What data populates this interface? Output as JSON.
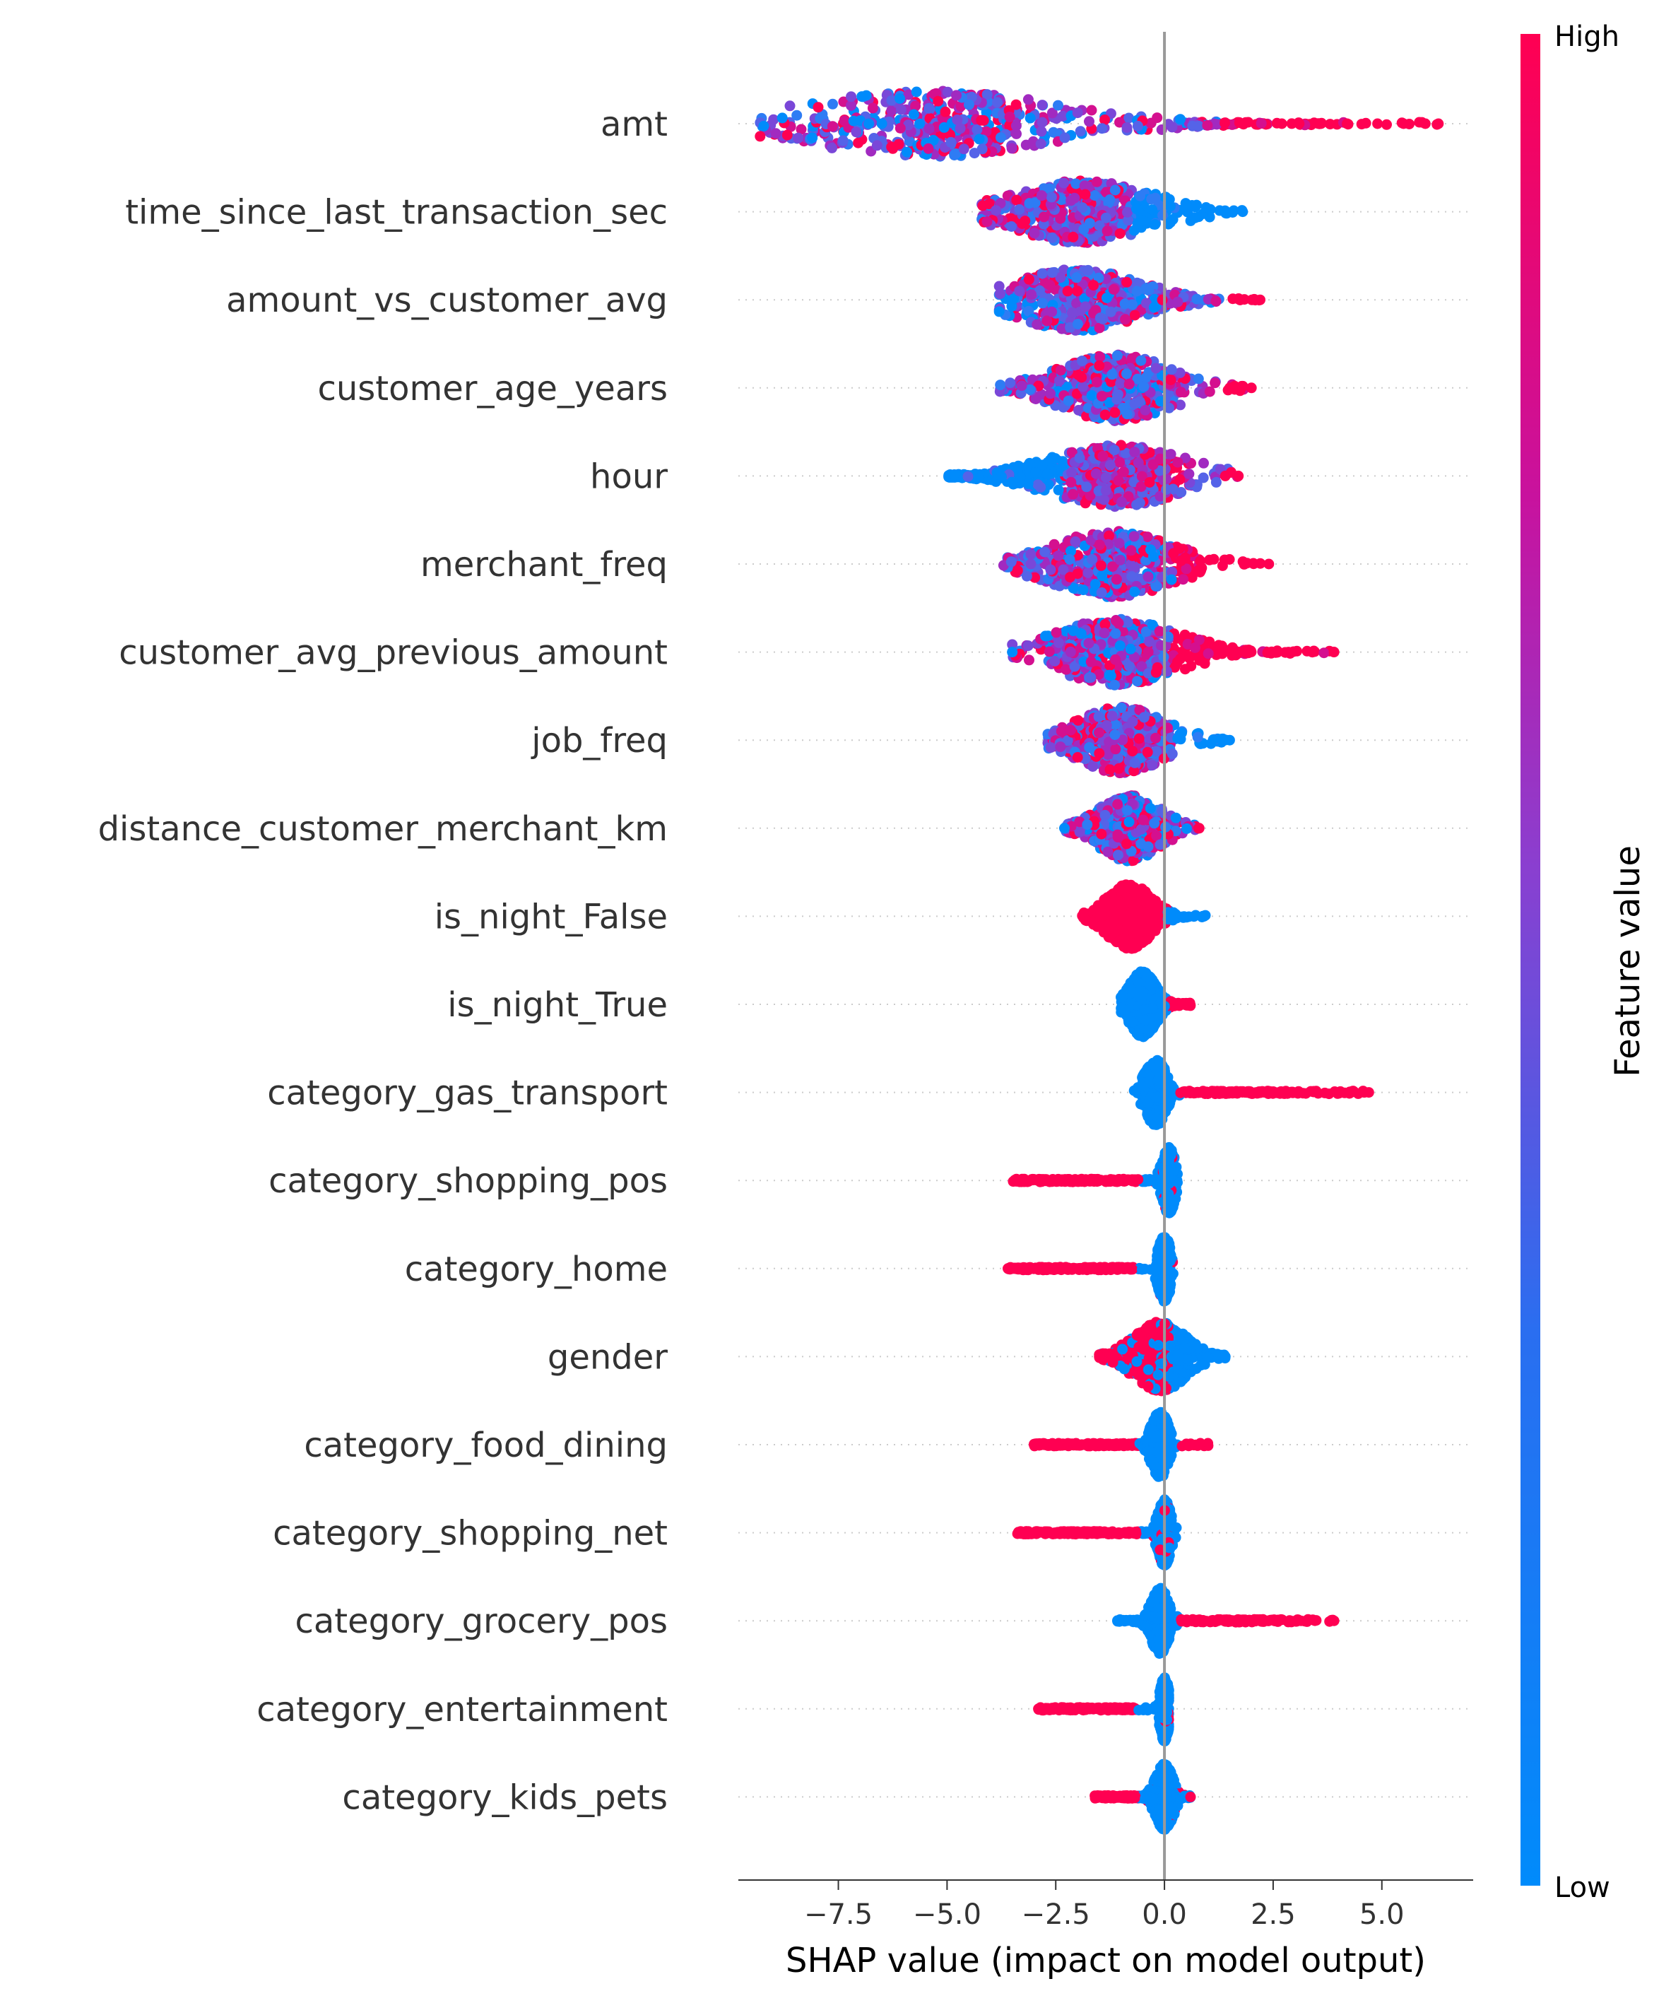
{
  "chart_data": {
    "type": "scatter",
    "subtype": "shap-beeswarm",
    "xlabel": "SHAP value (impact on model output)",
    "xlim": [
      -9.8,
      7.1
    ],
    "xticks": [
      -7.5,
      -5.0,
      -2.5,
      0.0,
      2.5,
      5.0
    ],
    "xtick_labels": [
      "−7.5",
      "−5.0",
      "−2.5",
      "0.0",
      "2.5",
      "5.0"
    ],
    "colorbar": {
      "label": "Feature value",
      "high_label": "High",
      "low_label": "Low",
      "high_color": "#ff0052",
      "low_color": "#008bfb"
    },
    "features": [
      {
        "name": "amt",
        "min": -9.3,
        "max": 6.3,
        "peak": -5.4,
        "width": 0.9,
        "spread": 2.9,
        "color_mode": "mixed",
        "pos_high": true,
        "outliers": [
          -6.5,
          -6.8,
          2.7,
          3.1,
          3.6,
          4.2,
          4.9,
          5.5,
          6.0,
          6.3
        ]
      },
      {
        "name": "time_since_last_transaction_sec",
        "min": -4.2,
        "max": 1.8,
        "peak": -1.9,
        "width": 0.85,
        "spread": 1.6,
        "color_mode": "mixed_low_right",
        "pos_high": false,
        "outliers": [
          1.8
        ]
      },
      {
        "name": "amount_vs_customer_avg",
        "min": -3.8,
        "max": 2.2,
        "peak": -2.0,
        "width": 0.85,
        "spread": 1.4,
        "color_mode": "mixed",
        "pos_high": true,
        "outliers": [
          2.2
        ]
      },
      {
        "name": "customer_age_years",
        "min": -3.8,
        "max": 2.0,
        "peak": -1.1,
        "width": 0.9,
        "spread": 1.3,
        "color_mode": "mixed",
        "pos_high": true,
        "outliers": [
          1.5,
          2.0
        ]
      },
      {
        "name": "hour",
        "min": -5.0,
        "max": 1.7,
        "peak": -1.1,
        "width": 0.85,
        "spread": 1.5,
        "color_mode": "mixed_low_left",
        "pos_high": true,
        "outliers": [
          1.7,
          1.4
        ]
      },
      {
        "name": "merchant_freq",
        "min": -3.7,
        "max": 2.4,
        "peak": -1.2,
        "width": 0.9,
        "spread": 1.4,
        "color_mode": "mixed_high_right",
        "pos_high": true,
        "outliers": [
          2.4
        ]
      },
      {
        "name": "customer_avg_previous_amount",
        "min": -3.5,
        "max": 3.9,
        "peak": -1.1,
        "width": 0.9,
        "spread": 1.4,
        "color_mode": "mixed_high_right",
        "pos_high": true,
        "outliers": [
          3.9,
          -3.5
        ]
      },
      {
        "name": "job_freq",
        "min": -2.7,
        "max": 1.5,
        "peak": -1.0,
        "width": 0.9,
        "spread": 1.0,
        "color_mode": "mixed_low_right",
        "pos_high": false,
        "outliers": [
          1.5
        ]
      },
      {
        "name": "distance_customer_merchant_km",
        "min": -2.3,
        "max": 0.8,
        "peak": -0.8,
        "width": 0.9,
        "spread": 0.7,
        "color_mode": "mixed",
        "pos_high": true,
        "outliers": [
          -2.3,
          0.8
        ]
      },
      {
        "name": "is_night_False",
        "min": -1.9,
        "max": 1.0,
        "peak": -0.8,
        "width": 0.9,
        "spread": 0.5,
        "color_mode": "split_high_left",
        "pos_high": false,
        "outliers": []
      },
      {
        "name": "is_night_True",
        "min": -1.0,
        "max": 0.6,
        "peak": -0.5,
        "width": 0.9,
        "spread": 0.3,
        "color_mode": "split_high_right",
        "pos_high": true,
        "outliers": []
      },
      {
        "name": "category_gas_transport",
        "min": -0.7,
        "max": 4.7,
        "peak": -0.2,
        "width": 0.9,
        "spread": 0.25,
        "color_mode": "tail_high_right",
        "pos_high": true,
        "outliers": [
          4.6,
          4.7
        ]
      },
      {
        "name": "category_shopping_pos",
        "min": -3.5,
        "max": 0.3,
        "peak": 0.1,
        "width": 0.9,
        "spread": 0.15,
        "color_mode": "tail_high_left",
        "pos_high": false,
        "outliers": [
          -0.7,
          -1.0
        ]
      },
      {
        "name": "category_home",
        "min": -3.6,
        "max": 0.2,
        "peak": 0.0,
        "width": 0.9,
        "spread": 0.15,
        "color_mode": "tail_high_left",
        "pos_high": false,
        "outliers": [
          -3.6
        ]
      },
      {
        "name": "gender",
        "min": -1.5,
        "max": 1.4,
        "peak": -0.1,
        "width": 0.95,
        "spread": 0.6,
        "color_mode": "gender",
        "pos_high": false,
        "outliers": [
          1.4,
          -1.5
        ]
      },
      {
        "name": "category_food_dining",
        "min": -3.0,
        "max": 1.1,
        "peak": -0.1,
        "width": 0.9,
        "spread": 0.2,
        "color_mode": "tail_high_both",
        "pos_high": false,
        "outliers": [
          -3.0
        ]
      },
      {
        "name": "category_shopping_net",
        "min": -3.4,
        "max": 0.3,
        "peak": 0.0,
        "width": 0.9,
        "spread": 0.15,
        "color_mode": "tail_high_left",
        "pos_high": false,
        "outliers": []
      },
      {
        "name": "category_grocery_pos",
        "min": -1.1,
        "max": 3.9,
        "peak": -0.1,
        "width": 0.9,
        "spread": 0.2,
        "color_mode": "tail_high_right",
        "pos_high": true,
        "outliers": [
          2.6,
          3.9
        ]
      },
      {
        "name": "category_entertainment",
        "min": -2.9,
        "max": 0.1,
        "peak": 0.0,
        "width": 0.9,
        "spread": 0.1,
        "color_mode": "tail_high_left",
        "pos_high": false,
        "outliers": [
          -2.9
        ]
      },
      {
        "name": "category_kids_pets",
        "min": -1.6,
        "max": 0.6,
        "peak": 0.0,
        "width": 0.9,
        "spread": 0.2,
        "color_mode": "tail_high_left",
        "pos_high": false,
        "outliers": [
          0.6
        ]
      }
    ]
  }
}
